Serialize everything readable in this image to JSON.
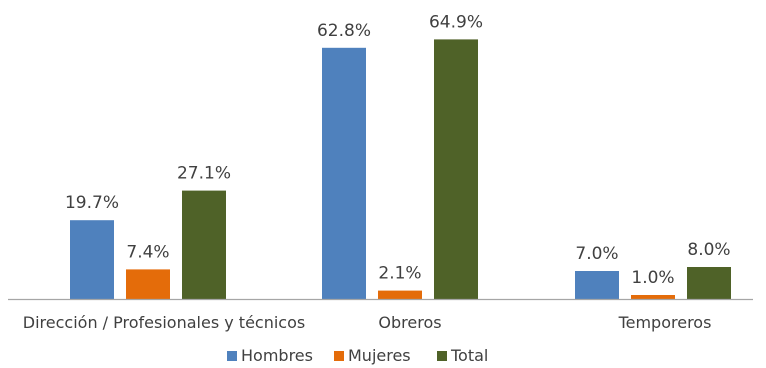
{
  "chart_data": {
    "type": "bar",
    "title": "",
    "xlabel": "",
    "ylabel": "",
    "categories": [
      "Dirección / Profesionales y técnicos",
      "Obreros",
      "Temporeros"
    ],
    "series": [
      {
        "name": "Hombres",
        "values": [
          19.7,
          62.8,
          7.0
        ],
        "labels": [
          "19.7%",
          "62.8%",
          "7.0%"
        ],
        "color": "#4f81bd"
      },
      {
        "name": "Mujeres",
        "values": [
          7.4,
          2.1,
          1.0
        ],
        "labels": [
          "7.4%",
          "2.1%",
          "1.0%"
        ],
        "color": "#e46c0a"
      },
      {
        "name": "Total",
        "values": [
          27.1,
          64.9,
          8.0
        ],
        "labels": [
          "27.1%",
          "64.9%",
          "8.0%"
        ],
        "color": "#4f6228"
      }
    ],
    "ylim": [
      0,
      65
    ],
    "grid": false,
    "legend": "bottom-center",
    "axis_color": "#a6a6a6"
  }
}
